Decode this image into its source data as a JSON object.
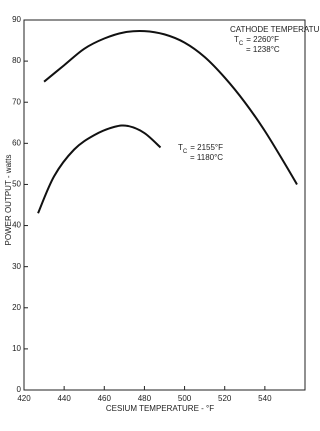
{
  "chart_data": {
    "type": "line",
    "x_label": "CESIUM TEMPERATURE - °F",
    "y_label": "POWER OUTPUT - watts",
    "xlim": [
      420,
      560
    ],
    "ylim": [
      0,
      90
    ],
    "xticks": [
      420,
      440,
      460,
      480,
      500,
      520,
      540
    ],
    "yticks": [
      0,
      10,
      20,
      30,
      40,
      50,
      60,
      70,
      80,
      90
    ],
    "series": [
      {
        "color": "#111111",
        "x": [
          430,
          440,
          450,
          460,
          470,
          480,
          490,
          500,
          510,
          520,
          530,
          540,
          550,
          556
        ],
        "values": [
          75,
          79,
          83,
          85.5,
          87,
          87.3,
          86.5,
          84.5,
          81,
          76,
          70,
          63,
          55,
          50
        ]
      },
      {
        "color": "#111111",
        "x": [
          427,
          435,
          445,
          455,
          465,
          472,
          480,
          488
        ],
        "values": [
          43,
          52,
          58.5,
          62,
          64,
          64.2,
          62.5,
          59
        ]
      }
    ],
    "annotations": [
      {
        "text": "CATHODE TEMPERATURE"
      },
      {
        "symbol": "T",
        "subscript": "C",
        "text": "= 2260°F"
      },
      {
        "text": "= 1238°C"
      },
      {
        "symbol": "T",
        "subscript": "C",
        "text": "= 2155°F"
      },
      {
        "text": "= 1180°C"
      }
    ]
  }
}
